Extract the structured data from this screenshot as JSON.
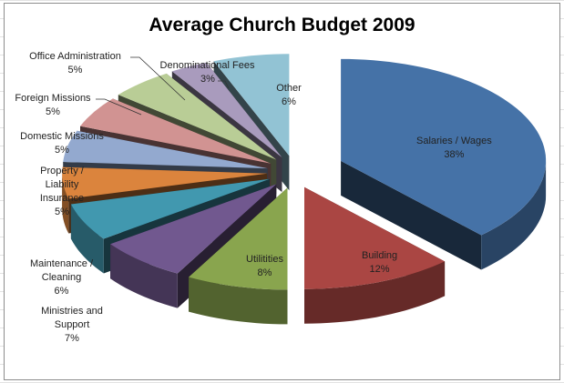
{
  "chart_data": {
    "type": "pie",
    "title": "Average Church Budget 2009",
    "three_d": true,
    "exploded": true,
    "legend": "none",
    "slices": [
      {
        "label": "Salaries / Wages",
        "value": 38,
        "pct_label": "38%",
        "color": "#4572a7"
      },
      {
        "label": "Building",
        "value": 12,
        "pct_label": "12%",
        "color": "#aa4643"
      },
      {
        "label": "Utilitities",
        "value": 8,
        "pct_label": "8%",
        "color": "#89a54e"
      },
      {
        "label": "Ministries and Support",
        "value": 7,
        "pct_label": "7%",
        "color": "#71588f"
      },
      {
        "label": "Maintenance / Cleaning",
        "value": 6,
        "pct_label": "6%",
        "color": "#4198af"
      },
      {
        "label": "Property / Liability Insurance",
        "value": 5,
        "pct_label": "5%",
        "color": "#db843d"
      },
      {
        "label": "Domestic Missions",
        "value": 5,
        "pct_label": "5%",
        "color": "#93a9cf"
      },
      {
        "label": "Foreign Missions",
        "value": 5,
        "pct_label": "5%",
        "color": "#d19392"
      },
      {
        "label": "Office Administration",
        "value": 5,
        "pct_label": "5%",
        "color": "#b9cd96"
      },
      {
        "label": "Denominational Fees",
        "value": 3,
        "pct_label": "3%",
        "color": "#a99bbd"
      },
      {
        "label": "Other",
        "value": 6,
        "pct_label": "6%",
        "color": "#92c3d4"
      }
    ]
  }
}
